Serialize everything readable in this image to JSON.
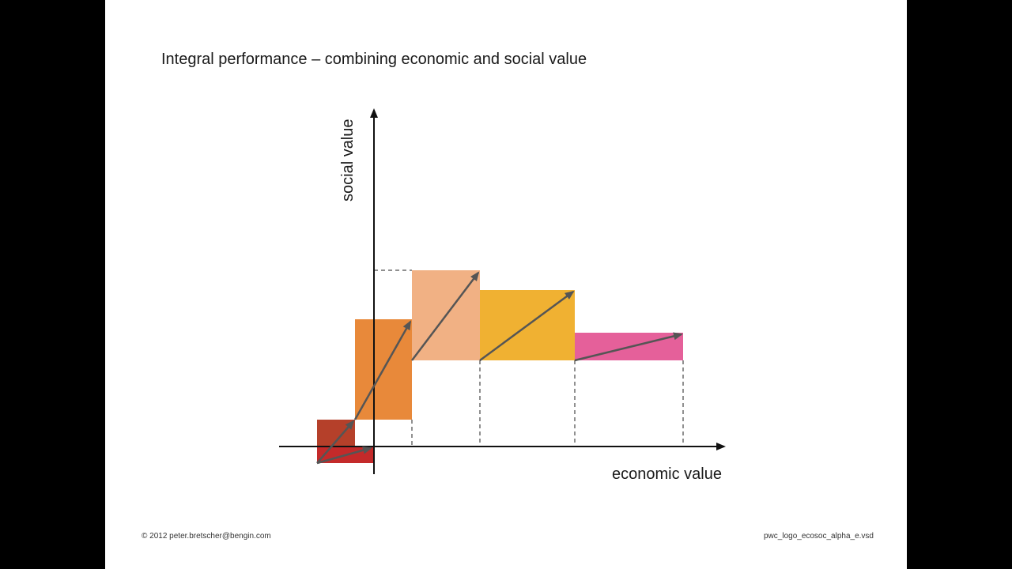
{
  "title": "Integral performance – combining economic and social value",
  "diagram": {
    "x_axis_label": "economic value",
    "y_axis_label": "social value",
    "colors": {
      "axis": "#111111",
      "arrow": "#555555",
      "dashed": "#222222",
      "block_1": "#b5402a",
      "block_1b": "#c42a2a",
      "block_2": "#e8893a",
      "block_3": "#f1b184",
      "block_4": "#f0b132",
      "block_5": "#e5609a"
    }
  },
  "footer": {
    "left": "© 2012 peter.bretscher@bengin.com",
    "right": "pwc_logo_ecosoc_alpha_e.vsd"
  }
}
